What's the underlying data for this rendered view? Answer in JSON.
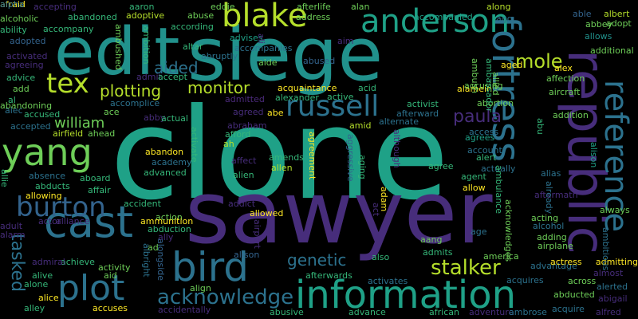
{
  "palette": {
    "purple": "#4b2a7b",
    "violet": "#472d7b",
    "blue": "#33638d",
    "steel": "#2c728e",
    "teal": "#21918c",
    "sea": "#1fa187",
    "green": "#35b779",
    "lime": "#6ece58",
    "yellowgreen": "#b5de2b",
    "yellow": "#fde725"
  },
  "words": [
    {
      "t": "clone",
      "c": "sea"
    },
    {
      "t": "sawyer",
      "c": "violet"
    },
    {
      "t": "siege",
      "c": "teal"
    },
    {
      "t": "edit",
      "c": "teal"
    },
    {
      "t": "republic",
      "c": "violet"
    },
    {
      "t": "information",
      "c": "sea"
    },
    {
      "t": "fortress",
      "c": "steel"
    },
    {
      "t": "cast",
      "c": "steel"
    },
    {
      "t": "bird",
      "c": "steel"
    },
    {
      "t": "reference",
      "c": "steel"
    },
    {
      "t": "anderson",
      "c": "sea"
    },
    {
      "t": "plot",
      "c": "steel"
    },
    {
      "t": "yang",
      "c": "lime"
    },
    {
      "t": "blake",
      "c": "yellowgreen"
    },
    {
      "t": "burton",
      "c": "blue"
    },
    {
      "t": "russell",
      "c": "steel"
    },
    {
      "t": "tex",
      "c": "yellowgreen"
    },
    {
      "t": "acknowledge",
      "c": "steel"
    },
    {
      "t": "mole",
      "c": "yellowgreen"
    },
    {
      "t": "tasked",
      "c": "steel"
    },
    {
      "t": "stalker",
      "c": "yellowgreen"
    },
    {
      "t": "genetic",
      "c": "steel"
    },
    {
      "t": "plotting",
      "c": "yellowgreen"
    },
    {
      "t": "monitor",
      "c": "yellowgreen"
    },
    {
      "t": "aided",
      "c": "steel"
    },
    {
      "t": "paula",
      "c": "violet"
    },
    {
      "t": "william",
      "c": "lime"
    },
    {
      "t": "accepting",
      "c": "violet"
    },
    {
      "t": "aaron",
      "c": "green"
    },
    {
      "t": "eddie",
      "c": "lime"
    },
    {
      "t": "afterlife",
      "c": "lime"
    },
    {
      "t": "alan",
      "c": "lime"
    },
    {
      "t": "along",
      "c": "yellowgreen"
    },
    {
      "t": "alcoholic",
      "c": "lime"
    },
    {
      "t": "abandoned",
      "c": "green"
    },
    {
      "t": "adoptive",
      "c": "yellowgreen"
    },
    {
      "t": "abuse",
      "c": "lime"
    },
    {
      "t": "address",
      "c": "lime"
    },
    {
      "t": "accompanied",
      "c": "sea"
    },
    {
      "t": "ago",
      "c": "steel"
    },
    {
      "t": "able",
      "c": "blue"
    },
    {
      "t": "albert",
      "c": "yellowgreen"
    },
    {
      "t": "ability",
      "c": "green"
    },
    {
      "t": "accompany",
      "c": "green"
    },
    {
      "t": "according",
      "c": "green"
    },
    {
      "t": "abbey",
      "c": "lime"
    },
    {
      "t": "adopt",
      "c": "lime"
    },
    {
      "t": "adopted",
      "c": "blue"
    },
    {
      "t": "advises",
      "c": "sea"
    },
    {
      "t": "accompanies",
      "c": "steel"
    },
    {
      "t": "allows",
      "c": "teal"
    },
    {
      "t": "activated",
      "c": "violet"
    },
    {
      "t": "aim",
      "c": "violet"
    },
    {
      "t": "additional",
      "c": "lime"
    },
    {
      "t": "agreeing",
      "c": "violet"
    },
    {
      "t": "altar",
      "c": "green"
    },
    {
      "t": "abruptly",
      "c": "steel"
    },
    {
      "t": "aged",
      "c": "yellow"
    },
    {
      "t": "advice",
      "c": "green"
    },
    {
      "t": "admit",
      "c": "violet"
    },
    {
      "t": "accept",
      "c": "green"
    },
    {
      "t": "aide",
      "c": "lime"
    },
    {
      "t": "abused",
      "c": "blue"
    },
    {
      "t": "alex",
      "c": "yellow"
    },
    {
      "t": "affection",
      "c": "lime"
    },
    {
      "t": "add",
      "c": "lime"
    },
    {
      "t": "acquaintance",
      "c": "yellow"
    },
    {
      "t": "acid",
      "c": "green"
    },
    {
      "t": "alamein",
      "c": "yellow"
    },
    {
      "t": "al",
      "c": "green"
    },
    {
      "t": "alexander",
      "c": "green"
    },
    {
      "t": "active",
      "c": "green"
    },
    {
      "t": "aircraft",
      "c": "lime"
    },
    {
      "t": "accomplice",
      "c": "steel"
    },
    {
      "t": "admitted",
      "c": "purple"
    },
    {
      "t": "accusing",
      "c": "lime"
    },
    {
      "t": "abortion",
      "c": "lime"
    },
    {
      "t": "alec",
      "c": "steel"
    },
    {
      "t": "abandoning",
      "c": "lime"
    },
    {
      "t": "ace",
      "c": "lime"
    },
    {
      "t": "agreed",
      "c": "violet"
    },
    {
      "t": "abe",
      "c": "yellow"
    },
    {
      "t": "activist",
      "c": "green"
    },
    {
      "t": "afterward",
      "c": "steel"
    },
    {
      "t": "alternate",
      "c": "steel"
    },
    {
      "t": "addition",
      "c": "lime"
    },
    {
      "t": "accused",
      "c": "green"
    },
    {
      "t": "abby",
      "c": "violet"
    },
    {
      "t": "actual",
      "c": "green"
    },
    {
      "t": "abraham",
      "c": "violet"
    },
    {
      "t": "accepted",
      "c": "steel"
    },
    {
      "t": "airfield",
      "c": "yellowgreen"
    },
    {
      "t": "ahead",
      "c": "lime"
    },
    {
      "t": "afford",
      "c": "green"
    },
    {
      "t": "ah",
      "c": "yellowgreen"
    },
    {
      "t": "access",
      "c": "steel"
    },
    {
      "t": "agrees",
      "c": "sea"
    },
    {
      "t": "amid",
      "c": "yellowgreen"
    },
    {
      "t": "account",
      "c": "steel"
    },
    {
      "t": "alert",
      "c": "green"
    },
    {
      "t": "abandon",
      "c": "yellow"
    },
    {
      "t": "affect",
      "c": "violet"
    },
    {
      "t": "amends",
      "c": "green"
    },
    {
      "t": "allen",
      "c": "yellowgreen"
    },
    {
      "t": "academy",
      "c": "steel"
    },
    {
      "t": "advanced",
      "c": "green"
    },
    {
      "t": "alien",
      "c": "green"
    },
    {
      "t": "agree",
      "c": "green"
    },
    {
      "t": "actually",
      "c": "steel"
    },
    {
      "t": "agent",
      "c": "green"
    },
    {
      "t": "alias",
      "c": "steel"
    },
    {
      "t": "absence",
      "c": "steel"
    },
    {
      "t": "aboard",
      "c": "green"
    },
    {
      "t": "abducts",
      "c": "green"
    },
    {
      "t": "affair",
      "c": "green"
    },
    {
      "t": "allowing",
      "c": "yellow"
    },
    {
      "t": "allow",
      "c": "yellow"
    },
    {
      "t": "aftermath",
      "c": "violet"
    },
    {
      "t": "accident",
      "c": "green"
    },
    {
      "t": "addict",
      "c": "violet"
    },
    {
      "t": "allowed",
      "c": "yellow"
    },
    {
      "t": "always",
      "c": "lime"
    },
    {
      "t": "action",
      "c": "lime"
    },
    {
      "t": "ammunition",
      "c": "yellow"
    },
    {
      "t": "alliance",
      "c": "violet"
    },
    {
      "t": "actor",
      "c": "violet"
    },
    {
      "t": "adult",
      "c": "violet"
    },
    {
      "t": "acting",
      "c": "lime"
    },
    {
      "t": "alcohol",
      "c": "steel"
    },
    {
      "t": "alarm",
      "c": "violet"
    },
    {
      "t": "abduction",
      "c": "green"
    },
    {
      "t": "aang",
      "c": "lime"
    },
    {
      "t": "age",
      "c": "steel"
    },
    {
      "t": "adding",
      "c": "lime"
    },
    {
      "t": "ally",
      "c": "violet"
    },
    {
      "t": "airplane",
      "c": "lime"
    },
    {
      "t": "ad",
      "c": "lime"
    },
    {
      "t": "alison",
      "c": "blue"
    },
    {
      "t": "admits",
      "c": "green"
    },
    {
      "t": "america",
      "c": "lime"
    },
    {
      "t": "achieve",
      "c": "green"
    },
    {
      "t": "admiral",
      "c": "violet"
    },
    {
      "t": "also",
      "c": "green"
    },
    {
      "t": "advantage",
      "c": "steel"
    },
    {
      "t": "actress",
      "c": "yellow"
    },
    {
      "t": "admitting",
      "c": "yellow"
    },
    {
      "t": "activity",
      "c": "lime"
    },
    {
      "t": "alive",
      "c": "green"
    },
    {
      "t": "aid",
      "c": "lime"
    },
    {
      "t": "almost",
      "c": "violet"
    },
    {
      "t": "alone",
      "c": "green"
    },
    {
      "t": "afterwards",
      "c": "green"
    },
    {
      "t": "activates",
      "c": "steel"
    },
    {
      "t": "acquires",
      "c": "steel"
    },
    {
      "t": "across",
      "c": "lime"
    },
    {
      "t": "alerted",
      "c": "steel"
    },
    {
      "t": "alice",
      "c": "yellow"
    },
    {
      "t": "align",
      "c": "lime"
    },
    {
      "t": "abducted",
      "c": "lime"
    },
    {
      "t": "abigail",
      "c": "violet"
    },
    {
      "t": "alley",
      "c": "green"
    },
    {
      "t": "accuses",
      "c": "yellow"
    },
    {
      "t": "accidentally",
      "c": "violet"
    },
    {
      "t": "abusive",
      "c": "green"
    },
    {
      "t": "advance",
      "c": "green"
    },
    {
      "t": "african",
      "c": "green"
    },
    {
      "t": "adventure",
      "c": "violet"
    },
    {
      "t": "ambrose",
      "c": "steel"
    },
    {
      "t": "acquire",
      "c": "steel"
    },
    {
      "t": "alfred",
      "c": "violet"
    },
    {
      "t": "ambushed",
      "c": "lime"
    },
    {
      "t": "ambition",
      "c": "green"
    },
    {
      "t": "ali",
      "c": "violet"
    },
    {
      "t": "ambush",
      "c": "lime"
    },
    {
      "t": "ambassador",
      "c": "green"
    },
    {
      "t": "allied",
      "c": "lime"
    },
    {
      "t": "alison",
      "c": "sea"
    },
    {
      "t": "already",
      "c": "steel"
    },
    {
      "t": "abu",
      "c": "green"
    },
    {
      "t": "activate",
      "c": "green"
    },
    {
      "t": "agreement",
      "c": "yellow"
    },
    {
      "t": "although",
      "c": "violet"
    },
    {
      "t": "aggressive",
      "c": "blue"
    },
    {
      "t": "aging",
      "c": "green"
    },
    {
      "t": "adam",
      "c": "yellow"
    },
    {
      "t": "act",
      "c": "violet"
    },
    {
      "t": "airport",
      "c": "violet"
    },
    {
      "t": "ambulance",
      "c": "green"
    },
    {
      "t": "acknowledges",
      "c": "lime"
    },
    {
      "t": "alongside",
      "c": "blue"
    },
    {
      "t": "albright",
      "c": "steel"
    },
    {
      "t": "ambitious",
      "c": "steel"
    },
    {
      "t": "allie",
      "c": "green"
    },
    {
      "t": "afraid",
      "c": "yellow"
    },
    {
      "t": "alpha",
      "c": "steel"
    }
  ]
}
